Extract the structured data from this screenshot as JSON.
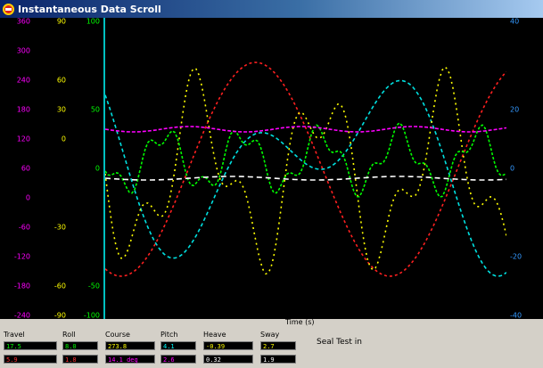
{
  "window": {
    "title": "Instantaneous Data Scroll"
  },
  "left_axes": [
    {
      "id": "a1",
      "color": "#ff00ff",
      "labels": [
        "360",
        "300",
        "240",
        "180",
        "120",
        "60",
        "0",
        "-60",
        "-120",
        "-180",
        "-240"
      ]
    },
    {
      "id": "a2",
      "color": "#ffff00",
      "labels": [
        "90",
        "",
        "60",
        "30",
        "0",
        "",
        "",
        "-30",
        "",
        "-60",
        "-90"
      ]
    },
    {
      "id": "a3",
      "color": "#00ff00",
      "labels": [
        "100",
        "",
        "",
        "50",
        "",
        "0",
        "",
        "",
        "",
        "-50",
        "-100"
      ]
    }
  ],
  "right_axis": {
    "color": "#3399ff",
    "labels": [
      "40",
      "",
      "",
      "20",
      "",
      "0",
      "",
      "",
      "-20",
      "",
      "-40"
    ]
  },
  "time_label": "Time (s)",
  "bottom_fields": {
    "row_labels": [
      "Travel",
      "Roll",
      "Course",
      "Pitch",
      "Heave",
      "Sway"
    ],
    "top_values": [
      "17.5",
      "8.0",
      "273.8",
      "4.1",
      "-0.39",
      "2.7"
    ],
    "bottom_values": [
      "5.9",
      "1.8",
      "14.1 deg",
      "2.6",
      "0.32",
      "1.9"
    ],
    "top_colors": [
      "#00ff00",
      "#00ff00",
      "#ffff00",
      "#00ffff",
      "#ffff00",
      "#ffff00"
    ],
    "bottom_colors": [
      "#ff3333",
      "#ff3333",
      "#ff00ff",
      "#ff00ff",
      "#ffffff",
      "#ffffff"
    ]
  },
  "status": "Seal Test in"
}
